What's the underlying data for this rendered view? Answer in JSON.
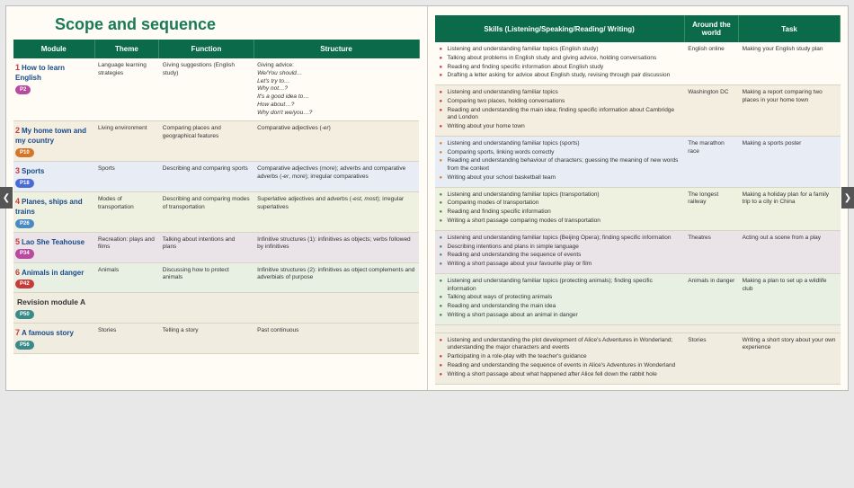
{
  "page_title": "Scope and sequence",
  "headers_left": [
    "Module",
    "Theme",
    "Function",
    "Structure"
  ],
  "headers_right": [
    "Skills (Listening/Speaking/Reading/\nWriting)",
    "Around the world",
    "Task"
  ],
  "revision": {
    "label": "Revision module A",
    "badge": "P50"
  },
  "modules": [
    {
      "num": "1",
      "title": "How to learn English",
      "badge": "P2",
      "theme": "Language learning strategies",
      "function": "Giving suggestions (English study)",
      "structure": "Giving advice:\nWe/You should…\nLet's try to…\nWhy not…?\nIt's a good idea to…\nHow about…?\nWhy don't we/you…?",
      "skills": [
        "Listening and understanding familiar topics (English study)",
        "Talking about problems in English study and giving advice, holding conversations",
        "Reading and finding specific information about English study",
        "Drafting a letter asking for advice about English study, revising through pair discussion"
      ],
      "around": "English online",
      "task": "Making your English study plan"
    },
    {
      "num": "2",
      "title": "My home town and my country",
      "badge": "P10",
      "theme": "Living environment",
      "function": "Comparing places and geographical features",
      "structure": "Comparative adjectives (-er)",
      "skills": [
        "Listening and understanding familiar topics",
        "Comparing two places, holding conversations",
        "Reading and understanding the main idea; finding specific information about Cambridge and London",
        "Writing about your home town"
      ],
      "around": "Washington DC",
      "task": "Making a report comparing two places in your home town"
    },
    {
      "num": "3",
      "title": "Sports",
      "badge": "P18",
      "theme": "Sports",
      "function": "Describing and comparing sports",
      "structure": "Comparative adjectives (more); adverbs and comparative adverbs (-er, more); irregular comparatives",
      "skills": [
        "Listening and understanding familiar topics (sports)",
        "Comparing sports, linking words correctly",
        "Reading and understanding behaviour of characters; guessing the meaning of new words from the context",
        "Writing about your school basketball team"
      ],
      "around": "The marathon race",
      "task": "Making a sports poster"
    },
    {
      "num": "4",
      "title": "Planes, ships and trains",
      "badge": "P26",
      "theme": "Modes of transportation",
      "function": "Describing and comparing modes of transportation",
      "structure": "Superlative adjectives and adverbs (-est, most); irregular superlatives",
      "skills": [
        "Listening and understanding familiar topics (transportation)",
        "Comparing modes of transportation",
        "Reading and finding specific information",
        "Writing a short passage comparing modes of transportation"
      ],
      "around": "The longest railway",
      "task": "Making a holiday plan for a family trip to a city in China"
    },
    {
      "num": "5",
      "title": "Lao She Teahouse",
      "badge": "P34",
      "theme": "Recreation: plays and films",
      "function": "Talking about intentions and plans",
      "structure": "Infinitive structures (1): infinitives as objects; verbs followed by infinitives",
      "skills": [
        "Listening and understanding familiar topics (Beijing Opera); finding specific information",
        "Describing intentions and plans in simple language",
        "Reading and understanding the sequence of events",
        "Writing a short passage about your favourite play or film"
      ],
      "around": "Theatres",
      "task": "Acting out a scene from a play"
    },
    {
      "num": "6",
      "title": "Animals in danger",
      "badge": "P42",
      "theme": "Animals",
      "function": "Discussing how to protect animals",
      "structure": "Infinitive structures (2): infinitives as object complements and adverbials of purpose",
      "skills": [
        "Listening and understanding familiar topics (protecting animals); finding specific information",
        "Talking about ways of protecting animals",
        "Reading and understanding the main idea",
        "Writing a short passage about an animal in danger"
      ],
      "around": "Animals in danger",
      "task": "Making a plan to set up a wildlife club"
    },
    {
      "num": "7",
      "title": "A famous story",
      "badge": "P56",
      "theme": "Stories",
      "function": "Telling a story",
      "structure": "Past continuous",
      "skills": [
        "Listening and understanding the plot development of Alice's Adventures in Wonderland; understanding the major characters and events",
        "Participating in a role-play with the teacher's guidance",
        "Reading and understanding the sequence of events in Alice's Adventures in Wonderland",
        "Writing a short passage about what happened after Alice fell down the rabbit hole"
      ],
      "around": "Stories",
      "task": "Writing a short story about your own experience"
    }
  ]
}
